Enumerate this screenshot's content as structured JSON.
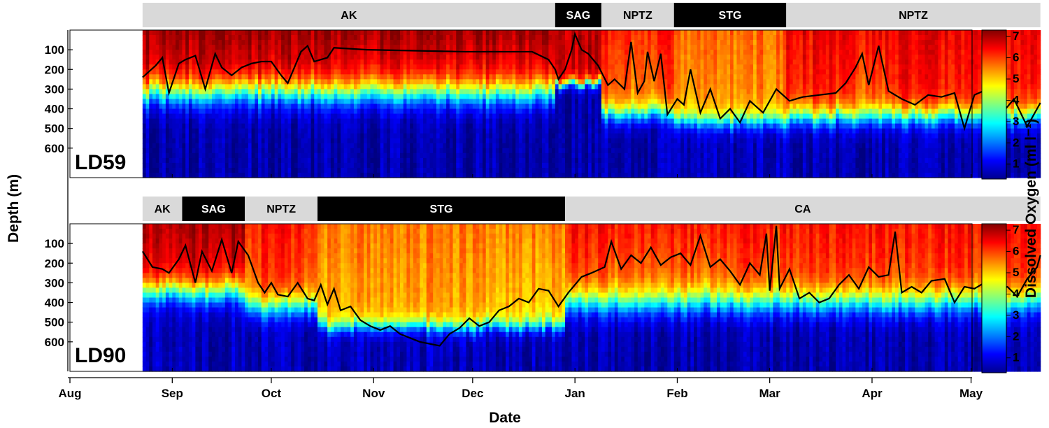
{
  "chart_data": {
    "type": "heatmap",
    "xlabel": "Date",
    "ylabel": "Depth (m)",
    "colorbar_label": "Dissolved  Oxygen  (ml l⁻¹)",
    "colorbar_ticks": [
      "1",
      "2",
      "3",
      "4",
      "5",
      "6",
      "7"
    ],
    "colorbar_range": [
      0.3,
      7.3
    ],
    "x_tick_labels": [
      "Aug",
      "Sep",
      "Oct",
      "Nov",
      "Dec",
      "Jan",
      "Feb",
      "Mar",
      "Apr",
      "May"
    ],
    "y_tick_labels": [
      "100",
      "200",
      "300",
      "400",
      "500",
      "600"
    ],
    "depth_range": [
      0,
      750
    ],
    "panels": [
      {
        "name": "LD59",
        "start_day": 22,
        "end_day": 294,
        "line_label": "mixed layer depth (black line)",
        "regimes": [
          {
            "label": "AK",
            "start": 22,
            "end": 147,
            "style": "light"
          },
          {
            "label": "SAG",
            "start": 147,
            "end": 161,
            "style": "dark"
          },
          {
            "label": "NPTZ",
            "start": 161,
            "end": 183,
            "style": "light"
          },
          {
            "label": "STG",
            "start": 183,
            "end": 217,
            "style": "dark"
          },
          {
            "label": "NPTZ",
            "start": 217,
            "end": 294,
            "style": "light"
          }
        ],
        "line_depth_points": [
          [
            22,
            240
          ],
          [
            26,
            180
          ],
          [
            28,
            140
          ],
          [
            30,
            320
          ],
          [
            33,
            170
          ],
          [
            35,
            150
          ],
          [
            38,
            130
          ],
          [
            41,
            300
          ],
          [
            44,
            120
          ],
          [
            46,
            190
          ],
          [
            49,
            230
          ],
          [
            52,
            190
          ],
          [
            55,
            170
          ],
          [
            58,
            160
          ],
          [
            61,
            160
          ],
          [
            64,
            230
          ],
          [
            66,
            270
          ],
          [
            68,
            190
          ],
          [
            70,
            110
          ],
          [
            72,
            80
          ],
          [
            74,
            160
          ],
          [
            78,
            140
          ],
          [
            80,
            90
          ],
          [
            90,
            100
          ],
          [
            120,
            110
          ],
          [
            140,
            110
          ],
          [
            145,
            150
          ],
          [
            147,
            200
          ],
          [
            148,
            250
          ],
          [
            150,
            200
          ],
          [
            152,
            100
          ],
          [
            153,
            20
          ],
          [
            155,
            100
          ],
          [
            157,
            120
          ],
          [
            160,
            180
          ],
          [
            163,
            280
          ],
          [
            165,
            250
          ],
          [
            168,
            300
          ],
          [
            170,
            60
          ],
          [
            172,
            320
          ],
          [
            174,
            260
          ],
          [
            175,
            110
          ],
          [
            177,
            260
          ],
          [
            179,
            120
          ],
          [
            181,
            430
          ],
          [
            184,
            350
          ],
          [
            186,
            380
          ],
          [
            188,
            200
          ],
          [
            191,
            420
          ],
          [
            194,
            300
          ],
          [
            197,
            450
          ],
          [
            200,
            400
          ],
          [
            203,
            470
          ],
          [
            206,
            360
          ],
          [
            210,
            420
          ],
          [
            214,
            300
          ],
          [
            218,
            360
          ],
          [
            222,
            340
          ],
          [
            227,
            330
          ],
          [
            232,
            320
          ],
          [
            235,
            270
          ],
          [
            238,
            190
          ],
          [
            240,
            120
          ],
          [
            242,
            280
          ],
          [
            245,
            80
          ],
          [
            248,
            310
          ],
          [
            252,
            350
          ],
          [
            256,
            380
          ],
          [
            260,
            330
          ],
          [
            264,
            340
          ],
          [
            268,
            320
          ],
          [
            271,
            500
          ],
          [
            274,
            330
          ],
          [
            278,
            300
          ],
          [
            282,
            430
          ],
          [
            286,
            350
          ],
          [
            290,
            490
          ],
          [
            294,
            370
          ]
        ],
        "oxygen_profile_zones": [
          {
            "name": "AK",
            "surface": 6.8,
            "ml_hold": 0.3,
            "cline_depth": 320,
            "cline_width": 170,
            "deep": 0.6
          },
          {
            "name": "SAG",
            "surface": 6.9,
            "ml_hold": 0.0,
            "cline_depth": 270,
            "cline_width": 60,
            "deep": 0.6
          },
          {
            "name": "NPTZ",
            "surface": 5.9,
            "ml_hold": 0.3,
            "cline_depth": 430,
            "cline_width": 120,
            "deep": 0.6
          },
          {
            "name": "STG",
            "surface": 5.4,
            "ml_hold": 0.3,
            "cline_depth": 460,
            "cline_width": 110,
            "deep": 0.7
          },
          {
            "name": "NPTZ",
            "surface": 6.2,
            "ml_hold": 0.3,
            "cline_depth": 440,
            "cline_width": 130,
            "deep": 0.6
          }
        ]
      },
      {
        "name": "LD90",
        "start_day": 22,
        "end_day": 294,
        "line_label": "mixed layer depth (black line)",
        "regimes": [
          {
            "label": "AK",
            "start": 22,
            "end": 34,
            "style": "light"
          },
          {
            "label": "SAG",
            "start": 34,
            "end": 53,
            "style": "dark"
          },
          {
            "label": "NPTZ",
            "start": 53,
            "end": 75,
            "style": "light"
          },
          {
            "label": "STG",
            "start": 75,
            "end": 150,
            "style": "dark"
          },
          {
            "label": "CA",
            "start": 150,
            "end": 294,
            "style": "light"
          }
        ],
        "line_depth_points": [
          [
            22,
            140
          ],
          [
            25,
            220
          ],
          [
            28,
            230
          ],
          [
            30,
            250
          ],
          [
            33,
            180
          ],
          [
            35,
            110
          ],
          [
            38,
            300
          ],
          [
            40,
            140
          ],
          [
            43,
            240
          ],
          [
            46,
            80
          ],
          [
            49,
            250
          ],
          [
            51,
            90
          ],
          [
            54,
            160
          ],
          [
            57,
            300
          ],
          [
            59,
            350
          ],
          [
            61,
            300
          ],
          [
            63,
            360
          ],
          [
            66,
            370
          ],
          [
            69,
            300
          ],
          [
            72,
            380
          ],
          [
            74,
            390
          ],
          [
            76,
            310
          ],
          [
            78,
            410
          ],
          [
            80,
            330
          ],
          [
            82,
            440
          ],
          [
            85,
            420
          ],
          [
            88,
            490
          ],
          [
            91,
            520
          ],
          [
            94,
            540
          ],
          [
            97,
            520
          ],
          [
            100,
            560
          ],
          [
            103,
            580
          ],
          [
            106,
            600
          ],
          [
            109,
            610
          ],
          [
            112,
            620
          ],
          [
            115,
            560
          ],
          [
            118,
            530
          ],
          [
            121,
            480
          ],
          [
            124,
            520
          ],
          [
            127,
            500
          ],
          [
            130,
            440
          ],
          [
            133,
            420
          ],
          [
            136,
            380
          ],
          [
            139,
            400
          ],
          [
            142,
            330
          ],
          [
            145,
            340
          ],
          [
            148,
            420
          ],
          [
            151,
            350
          ],
          [
            155,
            270
          ],
          [
            158,
            250
          ],
          [
            162,
            220
          ],
          [
            164,
            90
          ],
          [
            167,
            230
          ],
          [
            170,
            160
          ],
          [
            173,
            200
          ],
          [
            176,
            120
          ],
          [
            179,
            210
          ],
          [
            182,
            170
          ],
          [
            185,
            150
          ],
          [
            188,
            210
          ],
          [
            191,
            60
          ],
          [
            194,
            220
          ],
          [
            197,
            180
          ],
          [
            200,
            240
          ],
          [
            203,
            310
          ],
          [
            206,
            200
          ],
          [
            209,
            260
          ],
          [
            211,
            50
          ],
          [
            212,
            340
          ],
          [
            214,
            10
          ],
          [
            215,
            330
          ],
          [
            218,
            230
          ],
          [
            221,
            380
          ],
          [
            224,
            350
          ],
          [
            227,
            400
          ],
          [
            230,
            380
          ],
          [
            233,
            310
          ],
          [
            236,
            260
          ],
          [
            239,
            330
          ],
          [
            242,
            220
          ],
          [
            245,
            270
          ],
          [
            248,
            260
          ],
          [
            250,
            40
          ],
          [
            252,
            350
          ],
          [
            255,
            320
          ],
          [
            258,
            350
          ],
          [
            261,
            290
          ],
          [
            265,
            280
          ],
          [
            268,
            400
          ],
          [
            271,
            320
          ],
          [
            274,
            330
          ],
          [
            277,
            300
          ],
          [
            281,
            340
          ],
          [
            284,
            320
          ],
          [
            287,
            370
          ],
          [
            290,
            280
          ],
          [
            293,
            220
          ],
          [
            294,
            160
          ]
        ],
        "oxygen_profile_zones": [
          {
            "name": "AK",
            "surface": 6.6,
            "ml_hold": 0.3,
            "cline_depth": 350,
            "cline_width": 150,
            "deep": 0.7
          },
          {
            "name": "SAG",
            "surface": 6.8,
            "ml_hold": 0.3,
            "cline_depth": 350,
            "cline_width": 160,
            "deep": 0.7
          },
          {
            "name": "NPTZ",
            "surface": 6.0,
            "ml_hold": 0.3,
            "cline_depth": 420,
            "cline_width": 150,
            "deep": 0.7
          },
          {
            "name": "STG",
            "surface": 5.2,
            "ml_hold": 0.4,
            "cline_depth": 520,
            "cline_width": 90,
            "deep": 0.7
          },
          {
            "name": "CA",
            "surface": 6.0,
            "ml_hold": 0.3,
            "cline_depth": 400,
            "cline_width": 170,
            "deep": 0.6
          }
        ]
      }
    ]
  }
}
